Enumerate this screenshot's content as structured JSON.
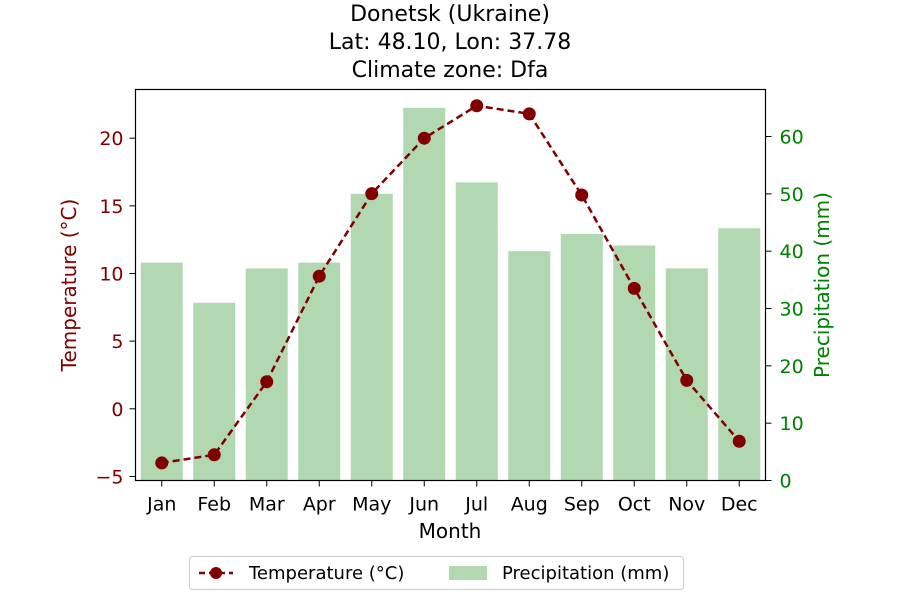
{
  "chart_data": {
    "type": "bar+line",
    "title_lines": [
      "Donetsk (Ukraine)",
      "Lat: 48.10, Lon: 37.78",
      "Climate zone: Dfa"
    ],
    "xlabel": "Month",
    "categories": [
      "Jan",
      "Feb",
      "Mar",
      "Apr",
      "May",
      "Jun",
      "Jul",
      "Aug",
      "Sep",
      "Oct",
      "Nov",
      "Dec"
    ],
    "series": [
      {
        "name": "Temperature (°C)",
        "type": "line",
        "axis": "left",
        "color": "#800000",
        "values": [
          -4.0,
          -3.4,
          2.0,
          9.8,
          15.9,
          20.0,
          22.4,
          21.8,
          15.8,
          8.9,
          2.1,
          -2.4
        ]
      },
      {
        "name": "Precipitation (mm)",
        "type": "bar",
        "axis": "right",
        "color": "#b2d8b2",
        "values": [
          38,
          31,
          37,
          38,
          50,
          65,
          52,
          40,
          43,
          41,
          37,
          44
        ]
      }
    ],
    "left_axis": {
      "label": "Temperature (°C)",
      "color": "#800000",
      "ylim": [
        -5.3,
        23.6
      ],
      "ticks": [
        -5,
        0,
        5,
        10,
        15,
        20
      ],
      "tick_labels": [
        "−5",
        "0",
        "5",
        "10",
        "15",
        "20"
      ]
    },
    "right_axis": {
      "label": "Precipitation (mm)",
      "color": "#008000",
      "ylim": [
        0,
        68.2
      ],
      "ticks": [
        0,
        10,
        20,
        30,
        40,
        50,
        60
      ],
      "tick_labels": [
        "0",
        "10",
        "20",
        "30",
        "40",
        "50",
        "60"
      ]
    },
    "legend": {
      "placement": "below",
      "entries": [
        "Temperature (°C)",
        "Precipitation (mm)"
      ]
    }
  }
}
